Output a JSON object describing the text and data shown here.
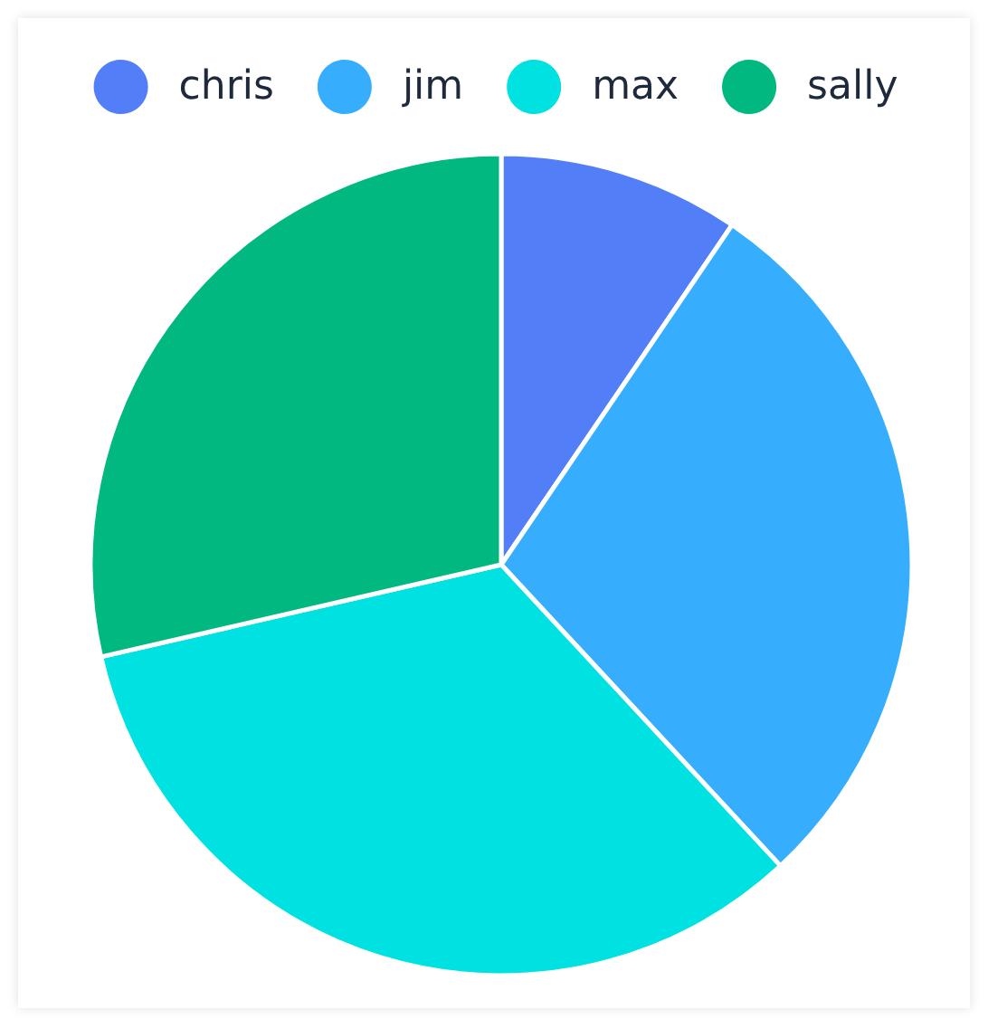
{
  "chart_data": {
    "type": "pie",
    "categories": [
      "chris",
      "jim",
      "max",
      "sally"
    ],
    "values": [
      9.5,
      28.6,
      33.3,
      28.6
    ],
    "colors": [
      "#527ef7",
      "#37aefd",
      "#00e1e1",
      "#00b880"
    ],
    "legend": "top"
  }
}
